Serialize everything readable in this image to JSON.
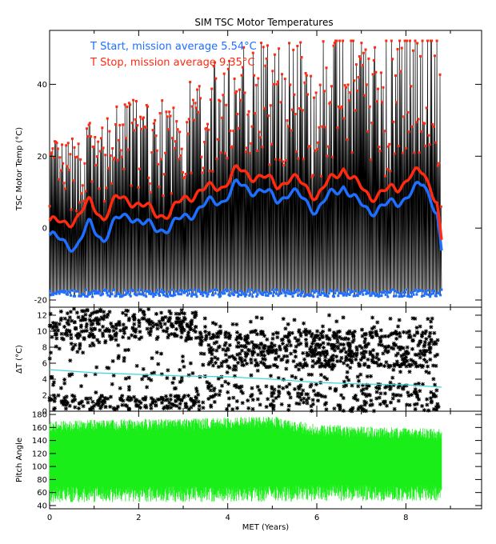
{
  "title": "SIM TSC Motor Temperatures",
  "colors": {
    "start": "#1e6fff",
    "stop": "#ff2a10",
    "dt_mean": "#40d8d8",
    "pitch": "#19ee19",
    "black": "#000000"
  },
  "legend": {
    "start_text": "T Start, mission average  5.54°C",
    "stop_text": "T Stop, mission average  9.35°C"
  },
  "x_axis": {
    "label": "MET (Years)",
    "range": [
      0,
      9.7
    ],
    "ticks": [
      "0",
      "2",
      "4",
      "6",
      "8"
    ]
  },
  "chart_data": [
    {
      "type": "line",
      "name": "temp",
      "ylabel": "TSC Motor Temp (°C)",
      "ylim": [
        -22,
        55
      ],
      "yticks": [
        "-20",
        "0",
        "20",
        "40"
      ],
      "series": [
        {
          "name": "T Start, mission average  5.54°C",
          "role": "start",
          "x": [
            0.0,
            0.3,
            0.6,
            0.9,
            1.2,
            1.5,
            1.8,
            2.1,
            2.4,
            2.7,
            3.0,
            3.3,
            3.6,
            3.9,
            4.2,
            4.5,
            4.8,
            5.1,
            5.4,
            5.7,
            6.0,
            6.3,
            6.6,
            6.9,
            7.2,
            7.5,
            7.8,
            8.1,
            8.4,
            8.7,
            8.8
          ],
          "y": [
            -2,
            -4,
            -5,
            1,
            -3,
            2,
            4,
            1,
            0,
            0,
            3,
            5,
            7,
            8,
            12,
            11,
            10,
            8,
            10,
            8,
            5,
            9,
            12,
            7,
            5,
            6,
            7,
            10,
            12,
            5,
            -7
          ]
        },
        {
          "name": "T Stop, mission average  9.35°C",
          "role": "stop",
          "x": [
            0.0,
            0.3,
            0.6,
            0.9,
            1.2,
            1.5,
            1.8,
            2.1,
            2.4,
            2.7,
            3.0,
            3.3,
            3.6,
            3.9,
            4.2,
            4.5,
            4.8,
            5.1,
            5.4,
            5.7,
            6.0,
            6.3,
            6.6,
            6.9,
            7.2,
            7.5,
            7.8,
            8.1,
            8.4,
            8.7,
            8.8
          ],
          "y": [
            2,
            1,
            3,
            7,
            3,
            8,
            8,
            6,
            4,
            4,
            8,
            10,
            11,
            12,
            16,
            15,
            14,
            12,
            14,
            12,
            9,
            13,
            17,
            12,
            9,
            10,
            11,
            15,
            15,
            8,
            -4
          ]
        }
      ]
    },
    {
      "type": "scatter",
      "name": "delta_t",
      "ylabel": "ΔT (°C)",
      "ylim": [
        0,
        13
      ],
      "yticks": [
        "0",
        "2",
        "4",
        "6",
        "8",
        "10",
        "12"
      ],
      "mean_line": {
        "x": [
          0.0,
          1.0,
          2.0,
          3.0,
          4.0,
          5.0,
          6.0,
          7.0,
          8.0,
          8.8
        ],
        "y": [
          5.2,
          4.8,
          4.6,
          4.4,
          4.3,
          4.0,
          3.6,
          3.4,
          3.3,
          3.0
        ]
      }
    },
    {
      "type": "area",
      "name": "pitch",
      "ylabel": "Pitch Angle",
      "ylim": [
        35,
        185
      ],
      "yticks": [
        "40",
        "60",
        "80",
        "100",
        "120",
        "140",
        "160",
        "180"
      ],
      "band_x": [
        0.0,
        1.0,
        2.0,
        3.0,
        4.0,
        5.0,
        5.5,
        6.0,
        7.0,
        8.0,
        8.8
      ],
      "band_lo": [
        45,
        45,
        45,
        45,
        46,
        46,
        46,
        47,
        47,
        47,
        47
      ],
      "band_hi": [
        170,
        172,
        173,
        174,
        175,
        178,
        170,
        165,
        162,
        160,
        158
      ]
    }
  ]
}
